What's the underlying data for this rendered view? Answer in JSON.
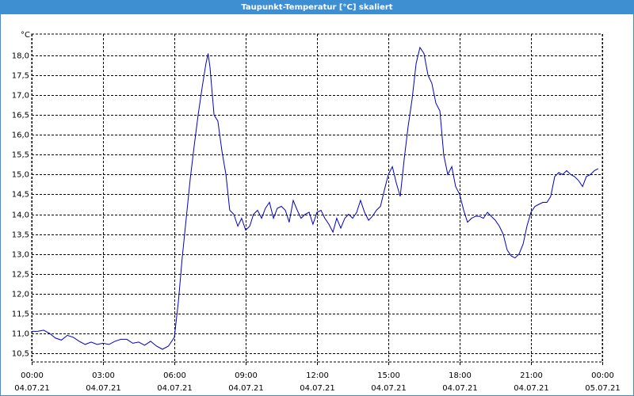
{
  "chart_data": {
    "type": "line",
    "title": "Taupunkt-Temperatur [°C] skaliert",
    "y_unit": "°C",
    "color": "#0000c8",
    "grid": true,
    "xlim": [
      0,
      24
    ],
    "xticks": [
      {
        "value": 0,
        "label": "00:00"
      },
      {
        "value": 3,
        "label": "03:00"
      },
      {
        "value": 6,
        "label": "06:00"
      },
      {
        "value": 9,
        "label": "09:00"
      },
      {
        "value": 12,
        "label": "12:00"
      },
      {
        "value": 15,
        "label": "15:00"
      },
      {
        "value": 18,
        "label": "18:00"
      },
      {
        "value": 21,
        "label": "21:00"
      },
      {
        "value": 24,
        "label": "00:00"
      }
    ],
    "xtick_dates": [
      "04.07.21",
      "04.07.21",
      "04.07.21",
      "04.07.21",
      "04.07.21",
      "04.07.21",
      "04.07.21",
      "04.07.21",
      "05.07.21"
    ],
    "ylim": [
      10.28,
      18.54
    ],
    "yticks": [
      {
        "value": 10.5,
        "label": "10,5"
      },
      {
        "value": 11,
        "label": "11,0"
      },
      {
        "value": 11.5,
        "label": "11,5"
      },
      {
        "value": 12,
        "label": "12,0"
      },
      {
        "value": 12.5,
        "label": "12,5"
      },
      {
        "value": 13,
        "label": "13,0"
      },
      {
        "value": 13.5,
        "label": "13,5"
      },
      {
        "value": 14,
        "label": "14,0"
      },
      {
        "value": 14.5,
        "label": "14,5"
      },
      {
        "value": 15,
        "label": "15,0"
      },
      {
        "value": 15.5,
        "label": "15,5"
      },
      {
        "value": 16,
        "label": "16,0"
      },
      {
        "value": 16.5,
        "label": "16,5"
      },
      {
        "value": 17,
        "label": "17,0"
      },
      {
        "value": 17.5,
        "label": "17,5"
      },
      {
        "value": 18,
        "label": "18,0"
      }
    ],
    "x": [
      0,
      0.25,
      0.5,
      0.75,
      1,
      1.25,
      1.5,
      1.75,
      2,
      2.25,
      2.5,
      2.75,
      3,
      3.25,
      3.5,
      3.75,
      4,
      4.25,
      4.5,
      4.75,
      5,
      5.25,
      5.5,
      5.75,
      6,
      6.17,
      6.33,
      6.5,
      6.67,
      6.83,
      7,
      7.17,
      7.33,
      7.42,
      7.5,
      7.67,
      7.83,
      8,
      8.17,
      8.33,
      8.5,
      8.67,
      8.83,
      9,
      9.17,
      9.33,
      9.5,
      9.67,
      9.83,
      10,
      10.17,
      10.33,
      10.5,
      10.67,
      10.83,
      11,
      11.17,
      11.33,
      11.5,
      11.67,
      11.83,
      12,
      12.17,
      12.33,
      12.5,
      12.67,
      12.83,
      13,
      13.17,
      13.33,
      13.5,
      13.67,
      13.83,
      14,
      14.17,
      14.33,
      14.5,
      14.67,
      14.83,
      15,
      15.17,
      15.33,
      15.5,
      15.67,
      15.83,
      16,
      16.17,
      16.33,
      16.5,
      16.67,
      16.83,
      17,
      17.17,
      17.33,
      17.5,
      17.67,
      17.83,
      18,
      18.17,
      18.33,
      18.5,
      18.67,
      18.83,
      19,
      19.17,
      19.33,
      19.5,
      19.67,
      19.83,
      20,
      20.17,
      20.33,
      20.5,
      20.67,
      20.83,
      21,
      21.17,
      21.33,
      21.5,
      21.67,
      21.83,
      22,
      22.17,
      22.33,
      22.5,
      22.67,
      22.83,
      23,
      23.17,
      23.33,
      23.5,
      23.67,
      23.83
    ],
    "values": [
      11.05,
      11.05,
      11.08,
      11.0,
      10.88,
      10.83,
      10.95,
      10.9,
      10.8,
      10.72,
      10.78,
      10.72,
      10.75,
      10.72,
      10.8,
      10.85,
      10.85,
      10.75,
      10.78,
      10.7,
      10.8,
      10.68,
      10.6,
      10.68,
      10.9,
      11.8,
      12.9,
      13.9,
      14.9,
      15.7,
      16.5,
      17.2,
      17.8,
      18.05,
      17.7,
      16.5,
      16.35,
      15.6,
      15.0,
      14.1,
      14.0,
      13.7,
      13.9,
      13.6,
      13.7,
      14.0,
      14.1,
      13.9,
      14.15,
      14.3,
      13.9,
      14.15,
      14.2,
      14.1,
      13.8,
      14.35,
      14.1,
      13.9,
      14.0,
      14.05,
      13.75,
      14.05,
      14.1,
      13.9,
      13.75,
      13.55,
      13.9,
      13.65,
      13.9,
      14.0,
      13.9,
      14.05,
      14.35,
      14.05,
      13.85,
      13.95,
      14.1,
      14.2,
      14.6,
      15.0,
      15.2,
      14.8,
      14.45,
      15.4,
      16.2,
      16.9,
      17.8,
      18.2,
      18.05,
      17.5,
      17.3,
      16.8,
      16.6,
      15.5,
      15.0,
      15.2,
      14.7,
      14.5,
      14.1,
      13.8,
      13.9,
      13.95,
      13.95,
      13.9,
      14.05,
      13.95,
      13.85,
      13.7,
      13.5,
      13.1,
      12.95,
      12.9,
      13.0,
      13.25,
      13.7,
      14.05,
      14.2,
      14.25,
      14.3,
      14.3,
      14.45,
      14.95,
      15.05,
      15.0,
      15.1,
      15.0,
      14.95,
      14.85,
      14.7,
      14.95,
      15.0,
      15.1,
      15.15
    ]
  }
}
